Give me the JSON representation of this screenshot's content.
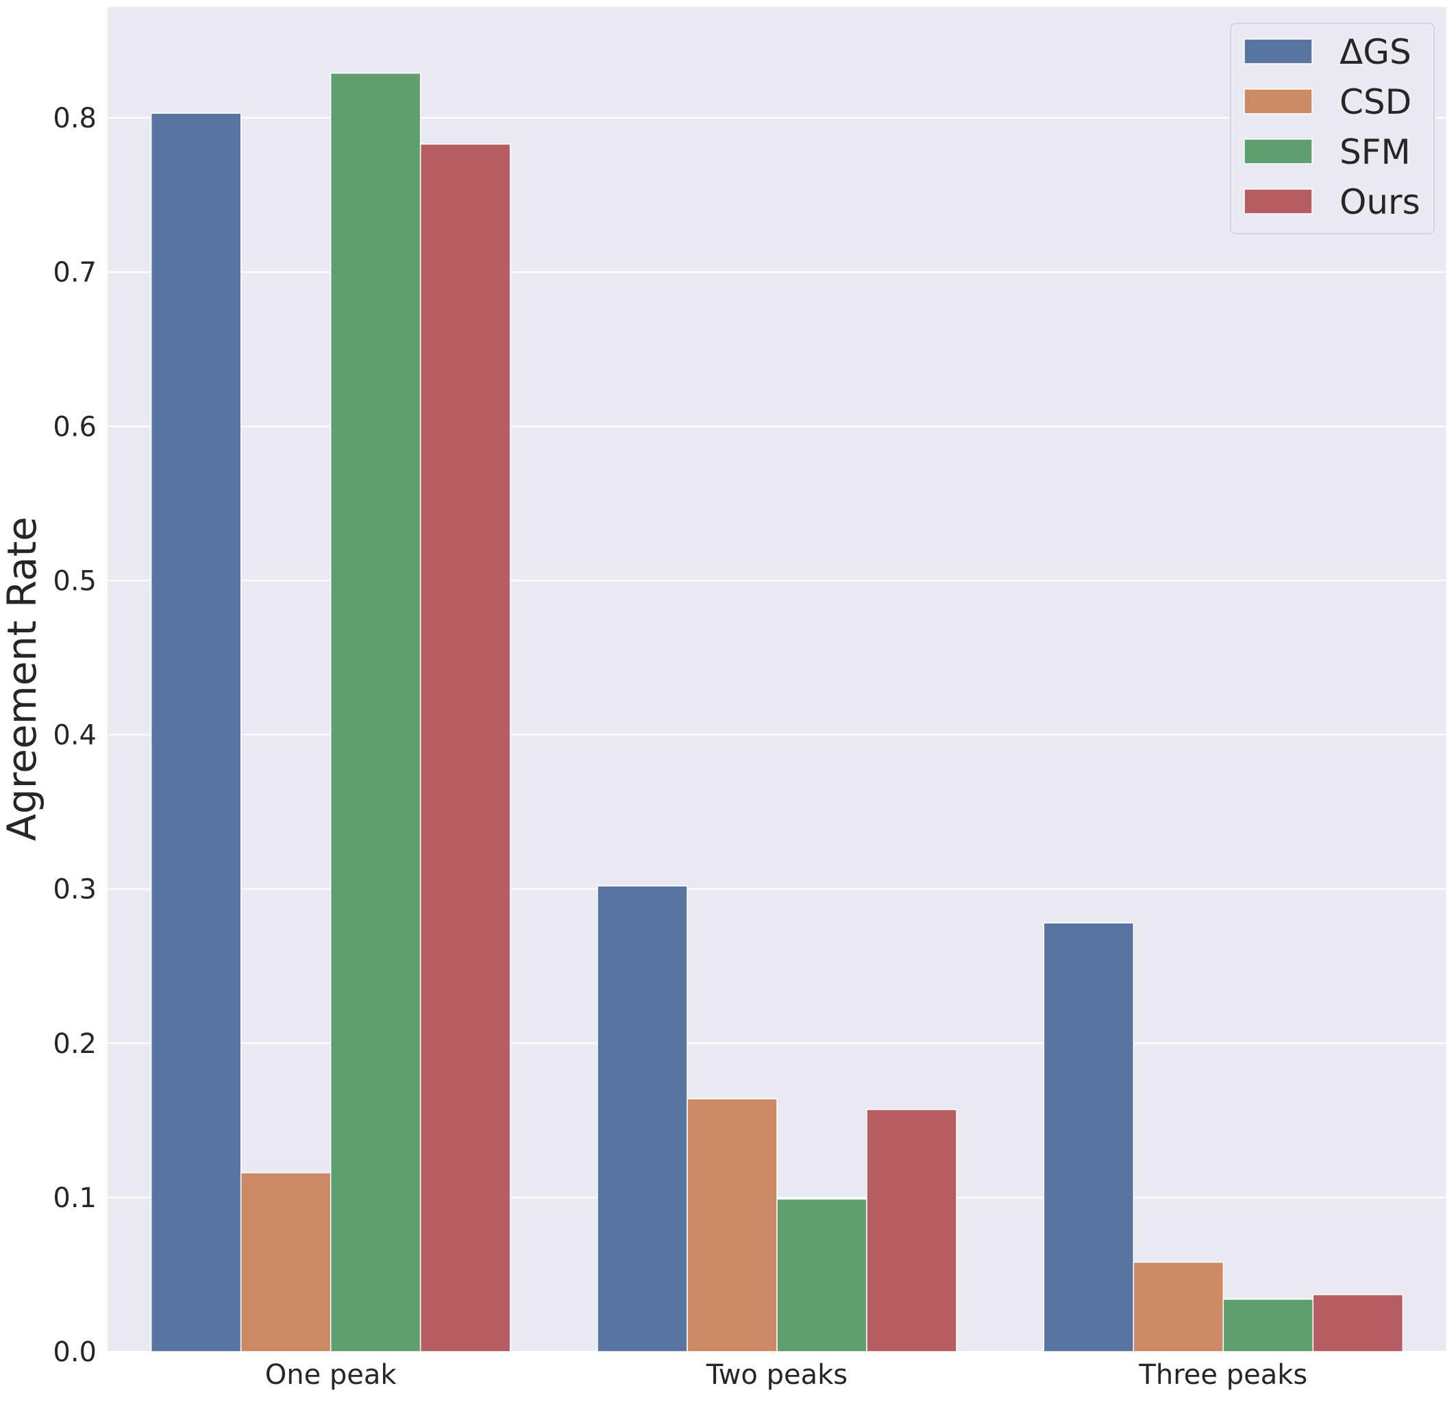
{
  "chart_data": {
    "type": "bar",
    "title": "",
    "xlabel": "",
    "ylabel": "Agreement Rate",
    "categories": [
      "One peak",
      "Two peaks",
      "Three peaks"
    ],
    "series": [
      {
        "name": "ΔGS",
        "color": "#5874a2",
        "values": [
          0.803,
          0.302,
          0.278
        ]
      },
      {
        "name": "CSD",
        "color": "#cc8963",
        "values": [
          0.116,
          0.164,
          0.058
        ]
      },
      {
        "name": "SFM",
        "color": "#5f9e6f",
        "values": [
          0.829,
          0.099,
          0.034
        ]
      },
      {
        "name": "Ours",
        "color": "#b65d61",
        "values": [
          0.783,
          0.157,
          0.037
        ]
      }
    ],
    "ylim": [
      0,
      0.872
    ],
    "yticks": [
      "0.0",
      "0.1",
      "0.2",
      "0.3",
      "0.4",
      "0.5",
      "0.6",
      "0.7",
      "0.8"
    ],
    "grid": true,
    "legend_position": "top-right",
    "background_color": "#eaeaf2",
    "grid_color": "#ffffff"
  }
}
